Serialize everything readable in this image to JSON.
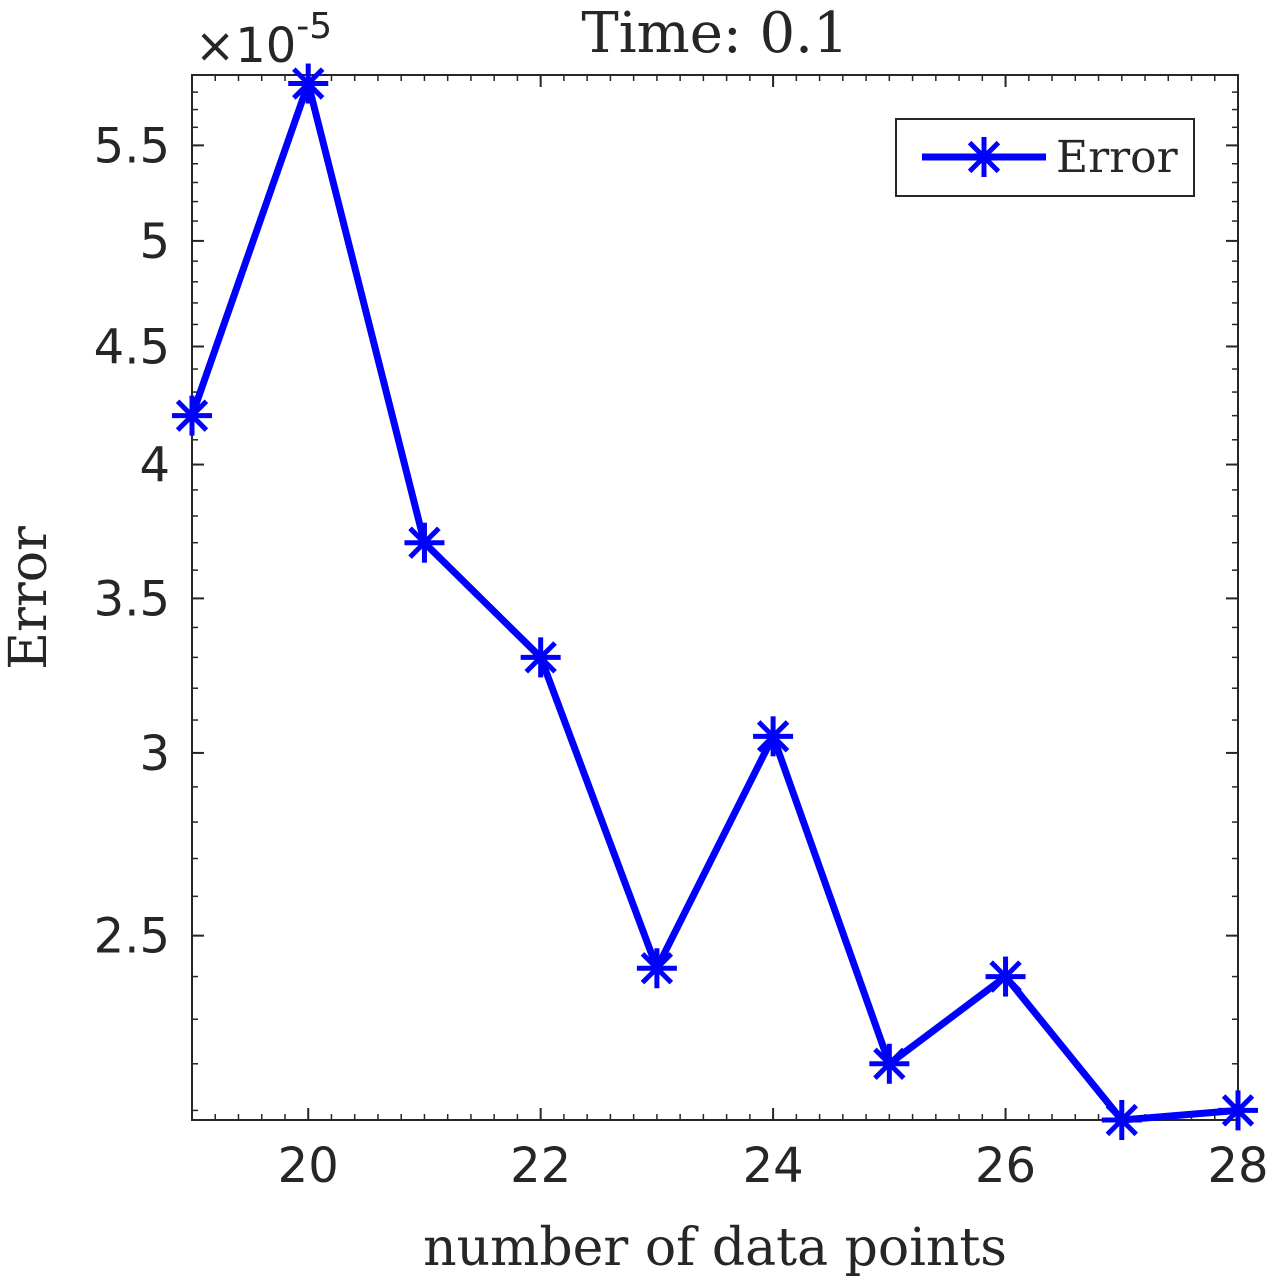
{
  "chart_data": {
    "type": "line",
    "title": "Time: 0.1",
    "xlabel": "number of data points",
    "ylabel": "Error",
    "y_multiplier_label": "×10",
    "y_multiplier_exponent": "-5",
    "y_scale": "log",
    "xlim": [
      19,
      28
    ],
    "ylim": [
      2.08,
      5.9
    ],
    "x_ticks": [
      20,
      22,
      24,
      26,
      28
    ],
    "x_tick_labels": [
      "20",
      "22",
      "24",
      "26",
      "28"
    ],
    "y_ticks": [
      2.5,
      3,
      3.5,
      4,
      4.5,
      5,
      5.5
    ],
    "y_tick_labels": [
      "2.5",
      "3",
      "3.5",
      "4",
      "4.5",
      "5",
      "5.5"
    ],
    "grid": false,
    "legend_position": "top-right",
    "series": [
      {
        "name": "Error",
        "color": "#0000ff",
        "marker": "asterisk",
        "x": [
          19,
          20,
          21,
          22,
          23,
          24,
          25,
          26,
          27,
          28
        ],
        "y": [
          4.2,
          5.85,
          3.7,
          3.3,
          2.42,
          3.05,
          2.2,
          2.4,
          2.08,
          2.1
        ]
      }
    ]
  }
}
